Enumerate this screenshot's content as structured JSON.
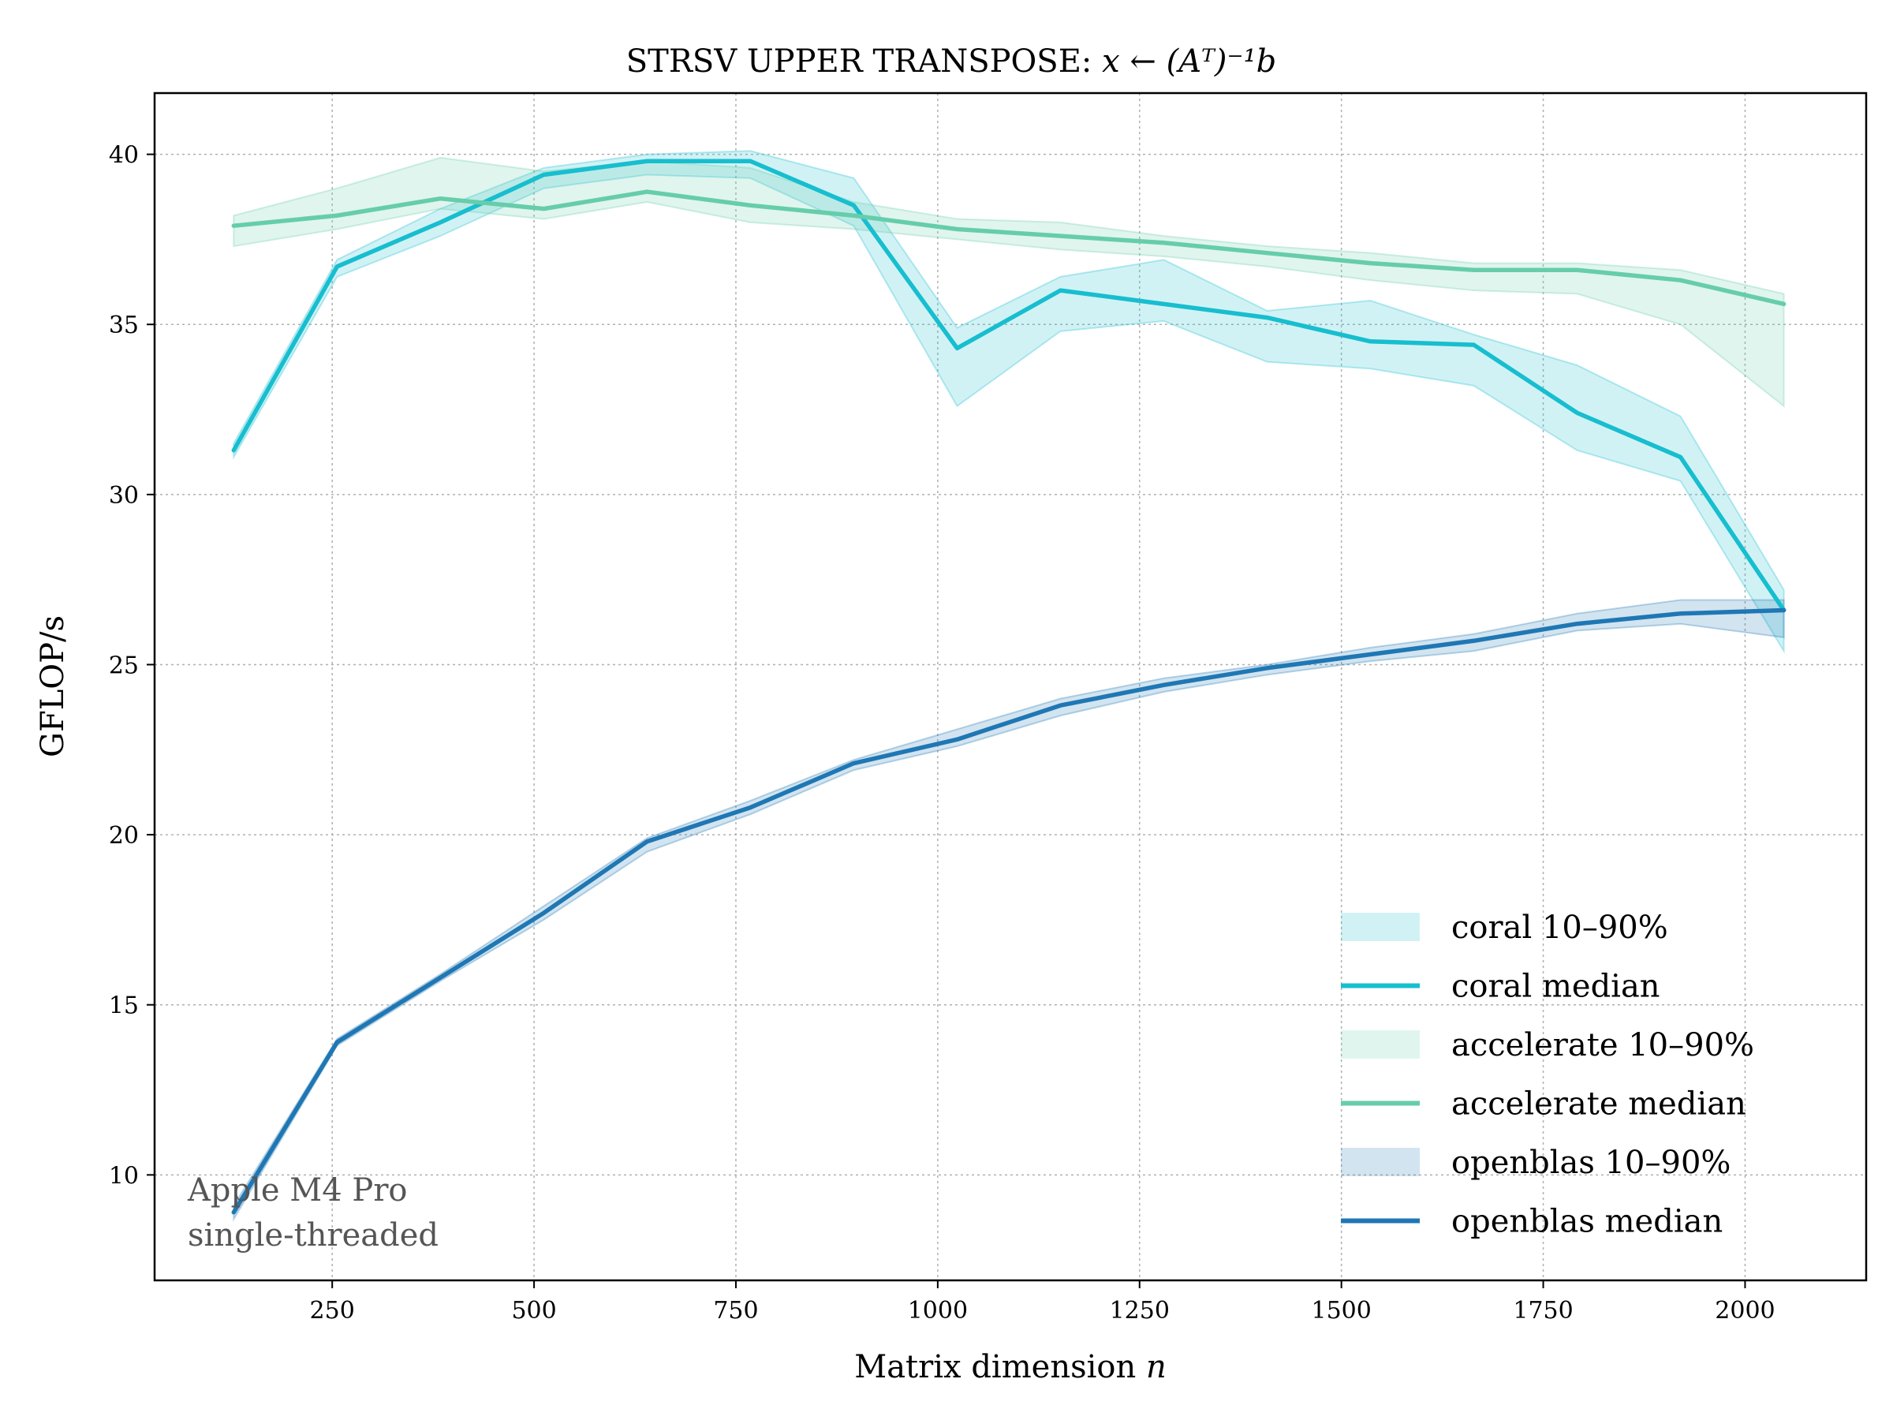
{
  "chart_data": {
    "type": "line",
    "title_prefix": "STRSV UPPER TRANSPOSE: ",
    "title_formula": "x ← (Aᵀ)⁻¹b",
    "xlabel_prefix": "Matrix dimension ",
    "xlabel_var": "n",
    "ylabel": "GFLOP/s",
    "xlim": [
      30,
      2150
    ],
    "ylim": [
      6.9,
      41.8
    ],
    "xticks": [
      250,
      500,
      750,
      1000,
      1250,
      1500,
      1750,
      2000
    ],
    "yticks": [
      10,
      15,
      20,
      25,
      30,
      35,
      40
    ],
    "grid": true,
    "legend_position": "lower-right",
    "x": [
      128,
      256,
      384,
      512,
      640,
      768,
      896,
      1024,
      1152,
      1280,
      1408,
      1536,
      1664,
      1792,
      1920,
      2048
    ],
    "series": [
      {
        "name": "coral median",
        "band_name": "coral 10–90%",
        "color": "#17becf",
        "values": [
          31.3,
          36.7,
          38.0,
          39.4,
          39.8,
          39.8,
          38.5,
          34.3,
          36.0,
          35.6,
          35.2,
          34.5,
          34.4,
          32.4,
          31.1,
          26.6
        ],
        "low": [
          31.1,
          36.4,
          37.6,
          39.0,
          39.4,
          39.3,
          37.9,
          32.6,
          34.8,
          35.1,
          33.9,
          33.7,
          33.2,
          31.3,
          30.4,
          25.4
        ],
        "high": [
          31.5,
          36.9,
          38.4,
          39.6,
          40.0,
          40.1,
          39.3,
          34.9,
          36.4,
          36.9,
          35.4,
          35.7,
          34.7,
          33.8,
          32.3,
          27.2
        ]
      },
      {
        "name": "accelerate median",
        "band_name": "accelerate 10–90%",
        "color": "#66cdaa",
        "values": [
          37.9,
          38.2,
          38.7,
          38.4,
          38.9,
          38.5,
          38.2,
          37.8,
          37.6,
          37.4,
          37.1,
          36.8,
          36.6,
          36.6,
          36.3,
          35.6
        ],
        "low": [
          37.3,
          37.8,
          38.4,
          38.1,
          38.6,
          38.0,
          37.8,
          37.5,
          37.2,
          37.0,
          36.7,
          36.3,
          36.0,
          35.9,
          35.0,
          32.6
        ],
        "high": [
          38.2,
          39.0,
          39.9,
          39.5,
          39.8,
          39.6,
          38.6,
          38.1,
          38.0,
          37.6,
          37.3,
          37.1,
          36.8,
          36.8,
          36.6,
          35.9
        ]
      },
      {
        "name": "openblas median",
        "band_name": "openblas 10–90%",
        "color": "#1f77b4",
        "values": [
          8.9,
          13.9,
          15.8,
          17.7,
          19.8,
          20.8,
          22.1,
          22.8,
          23.8,
          24.4,
          24.9,
          25.3,
          25.7,
          26.2,
          26.5,
          26.6
        ],
        "low": [
          8.7,
          13.8,
          15.7,
          17.5,
          19.5,
          20.6,
          21.9,
          22.6,
          23.5,
          24.2,
          24.7,
          25.1,
          25.4,
          26.0,
          26.2,
          25.8
        ],
        "high": [
          9.1,
          14.0,
          15.9,
          17.9,
          19.9,
          21.0,
          22.2,
          23.1,
          24.0,
          24.6,
          25.0,
          25.5,
          25.9,
          26.5,
          26.9,
          26.9
        ]
      }
    ]
  },
  "annotation": {
    "line1": "Apple M4 Pro",
    "line2": "single-threaded"
  }
}
